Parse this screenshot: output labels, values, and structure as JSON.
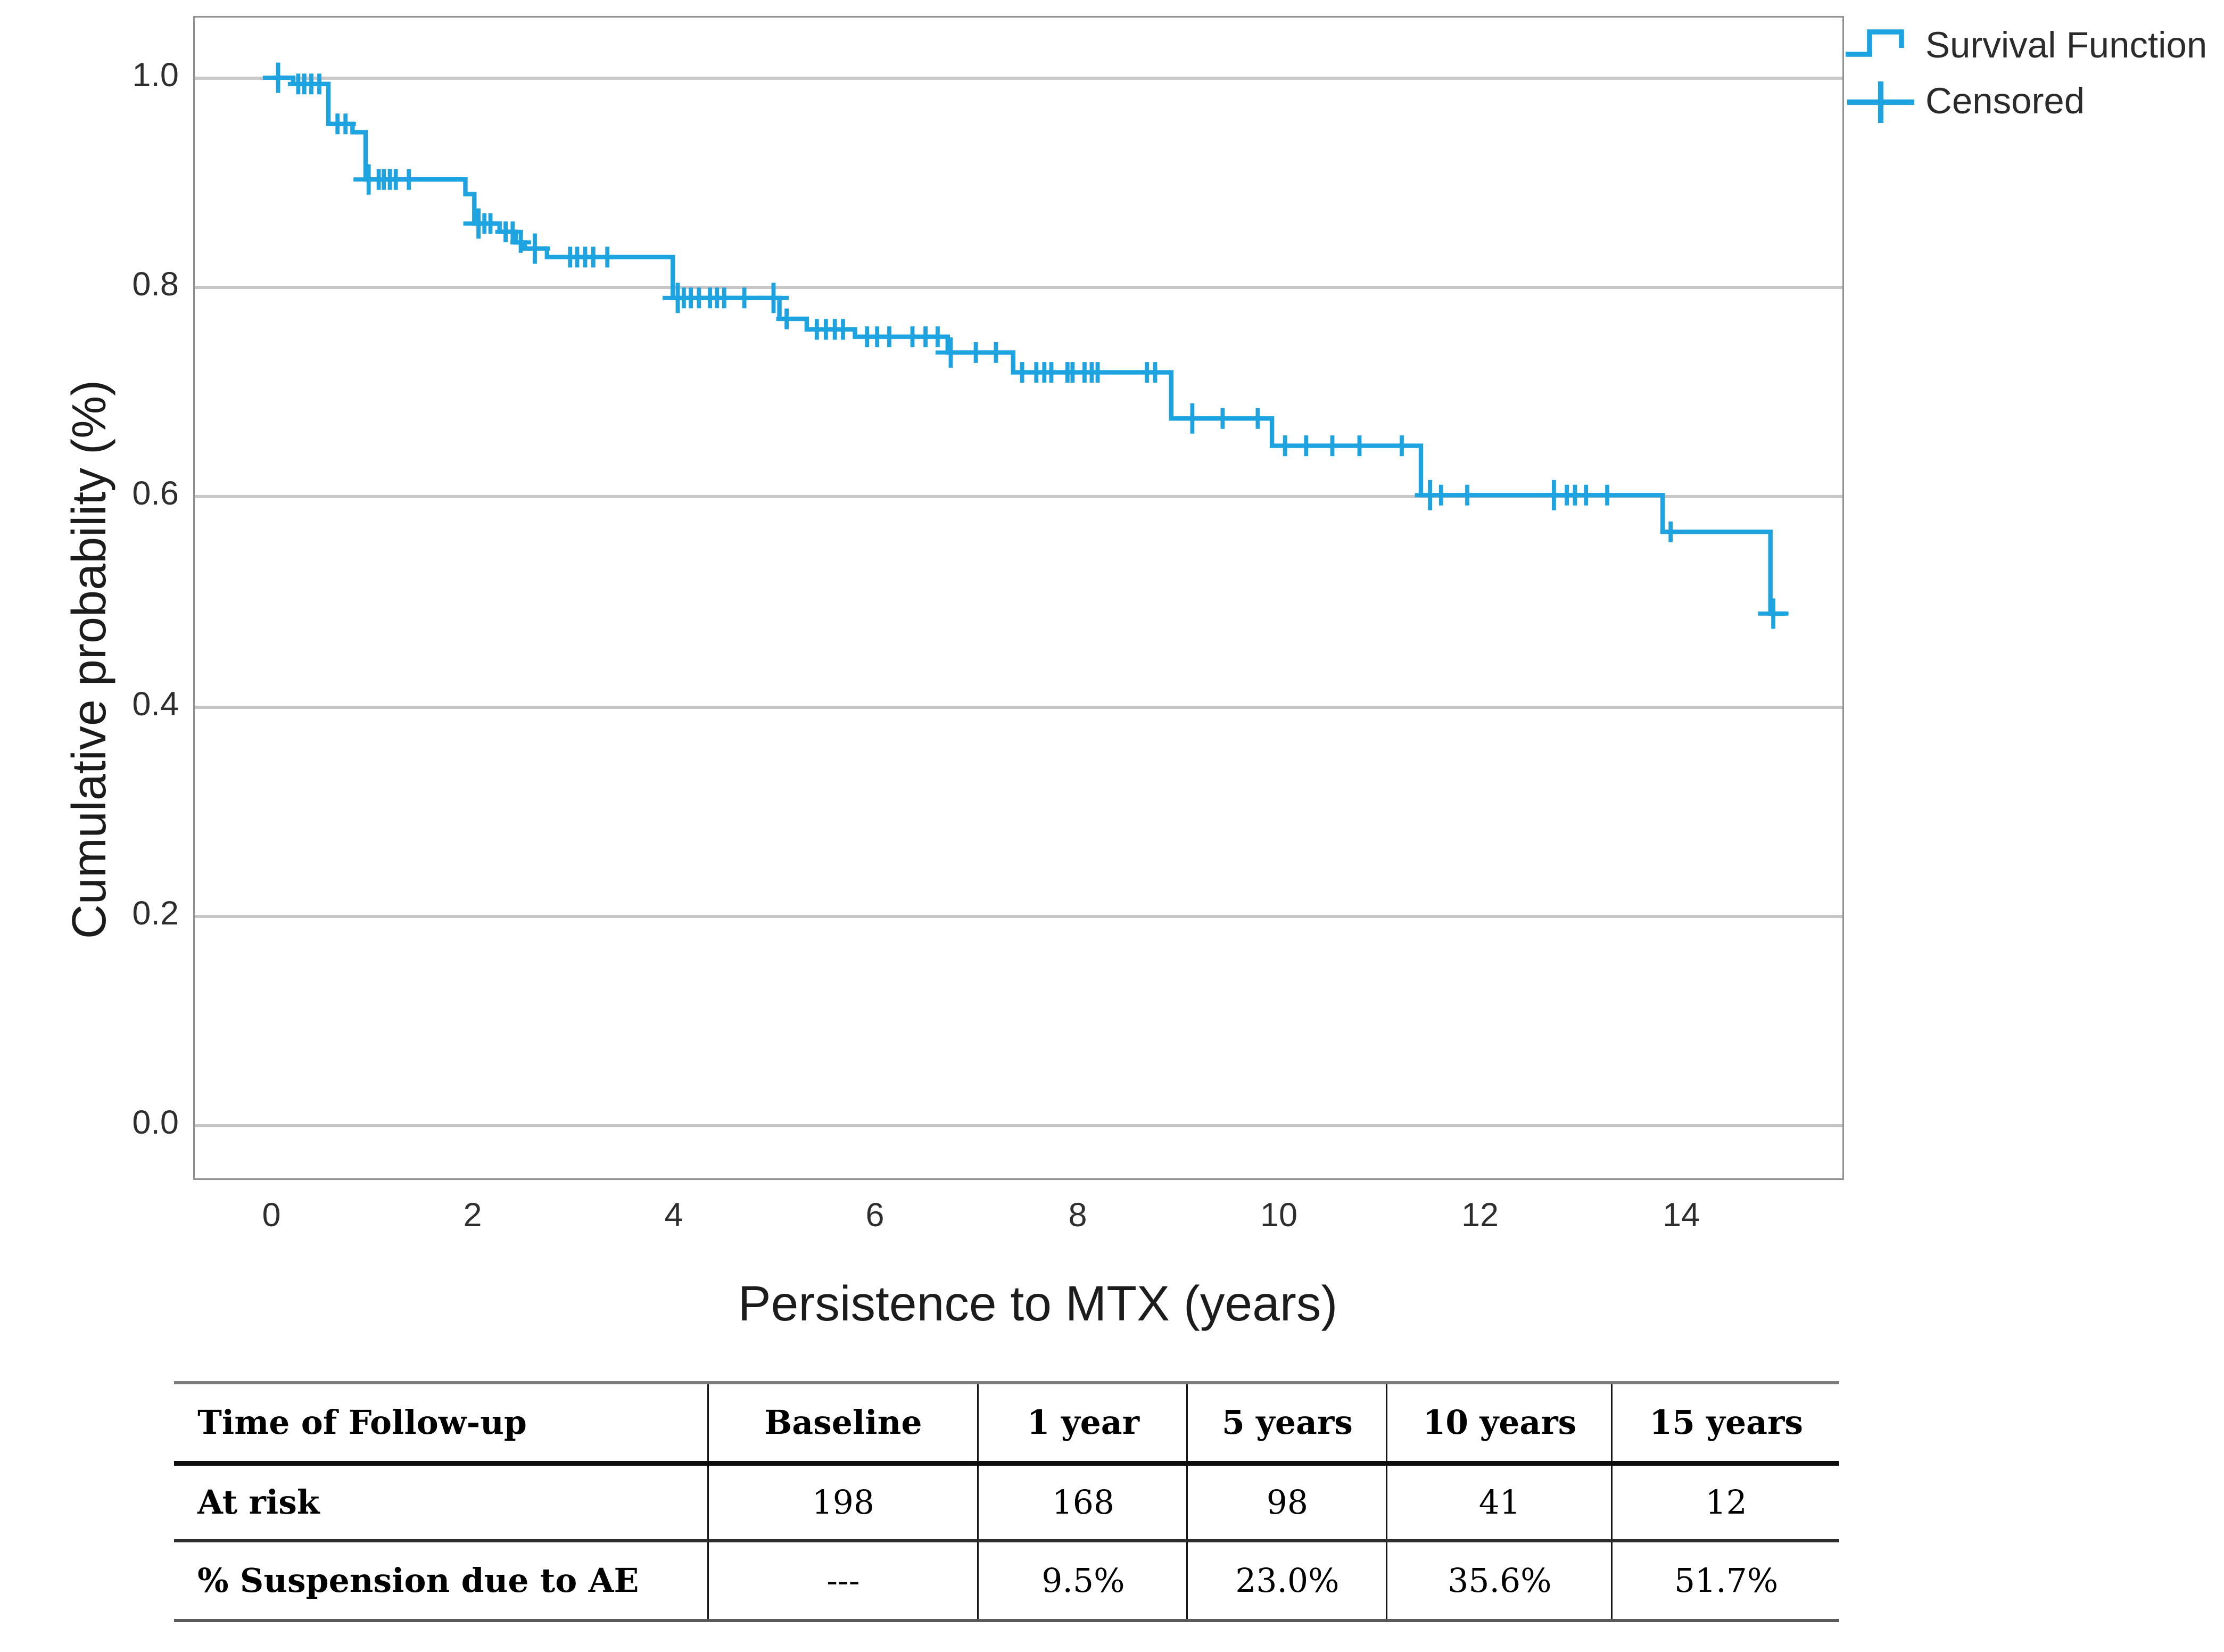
{
  "chart": {
    "y_axis": {
      "title": "Cumulative probability (%)",
      "tick_labels": [
        "1.0",
        "0.8",
        "0.6",
        "0.4",
        "0.2",
        "0.0"
      ]
    },
    "x_axis": {
      "title": "Persistence to MTX (years)",
      "tick_labels": [
        "0",
        "2",
        "4",
        "6",
        "8",
        "10",
        "12",
        "14"
      ]
    },
    "legend": {
      "survival_label": "Survival Function",
      "censored_label": "Censored"
    },
    "colors": {
      "curve_blue": "#1ea3e1",
      "gridline_gray": "#c6c6c6",
      "frame_gray": "#919191"
    }
  },
  "chart_data": {
    "type": "line",
    "subtype": "kaplan-meier-step",
    "title": "",
    "xlabel": "Persistence to MTX (years)",
    "ylabel": "Cumulative probability (%)",
    "xlim": [
      -0.78,
      15.6
    ],
    "ylim": [
      -0.07,
      1.06
    ],
    "x_ticks": [
      0,
      2,
      4,
      6,
      8,
      10,
      12,
      14
    ],
    "y_ticks": [
      0.0,
      0.2,
      0.4,
      0.6,
      0.8,
      1.0
    ],
    "grid": "horizontal",
    "legend_position": "top-right-outside",
    "series": [
      {
        "name": "Survival Function",
        "style": "step-after",
        "points": [
          [
            0.0,
            1.0
          ],
          [
            0.2,
            0.994
          ],
          [
            0.55,
            0.956
          ],
          [
            0.79,
            0.948
          ],
          [
            0.92,
            0.903
          ],
          [
            1.91,
            0.889
          ],
          [
            2.0,
            0.861
          ],
          [
            2.25,
            0.853
          ],
          [
            2.41,
            0.843
          ],
          [
            2.5,
            0.837
          ],
          [
            2.72,
            0.829
          ],
          [
            3.97,
            0.79
          ],
          [
            5.03,
            0.77
          ],
          [
            5.3,
            0.76
          ],
          [
            5.78,
            0.753
          ],
          [
            6.7,
            0.738
          ],
          [
            7.35,
            0.719
          ],
          [
            8.92,
            0.675
          ],
          [
            9.92,
            0.649
          ],
          [
            11.4,
            0.602
          ],
          [
            13.8,
            0.567
          ],
          [
            14.87,
            0.489
          ],
          [
            15.02,
            0.489
          ]
        ]
      },
      {
        "name": "Censored",
        "style": "plus-markers",
        "points": [
          [
            0.05,
            1.0,
            1
          ],
          [
            0.25,
            0.994
          ],
          [
            0.31,
            0.994
          ],
          [
            0.38,
            0.994
          ],
          [
            0.46,
            0.994
          ],
          [
            0.64,
            0.956
          ],
          [
            0.72,
            0.956
          ],
          [
            0.95,
            0.903,
            1
          ],
          [
            1.05,
            0.903
          ],
          [
            1.1,
            0.903
          ],
          [
            1.16,
            0.903
          ],
          [
            1.22,
            0.903
          ],
          [
            1.35,
            0.903
          ],
          [
            2.04,
            0.861,
            1
          ],
          [
            2.1,
            0.861
          ],
          [
            2.16,
            0.861
          ],
          [
            2.31,
            0.853
          ],
          [
            2.38,
            0.853
          ],
          [
            2.46,
            0.843
          ],
          [
            2.6,
            0.837,
            1
          ],
          [
            2.95,
            0.829
          ],
          [
            3.02,
            0.829
          ],
          [
            3.1,
            0.829
          ],
          [
            3.18,
            0.829
          ],
          [
            3.32,
            0.829
          ],
          [
            4.02,
            0.79,
            1
          ],
          [
            4.08,
            0.79
          ],
          [
            4.15,
            0.79
          ],
          [
            4.23,
            0.79
          ],
          [
            4.34,
            0.79
          ],
          [
            4.41,
            0.79
          ],
          [
            4.48,
            0.79
          ],
          [
            4.68,
            0.79
          ],
          [
            4.97,
            0.79,
            1
          ],
          [
            5.1,
            0.77
          ],
          [
            5.4,
            0.76
          ],
          [
            5.49,
            0.76
          ],
          [
            5.58,
            0.76
          ],
          [
            5.66,
            0.76
          ],
          [
            5.9,
            0.753
          ],
          [
            6.0,
            0.753
          ],
          [
            6.12,
            0.753
          ],
          [
            6.35,
            0.753
          ],
          [
            6.48,
            0.753
          ],
          [
            6.6,
            0.753
          ],
          [
            6.73,
            0.738,
            1
          ],
          [
            6.98,
            0.738
          ],
          [
            7.18,
            0.738
          ],
          [
            7.44,
            0.719
          ],
          [
            7.58,
            0.719
          ],
          [
            7.66,
            0.719
          ],
          [
            7.73,
            0.719
          ],
          [
            7.89,
            0.719
          ],
          [
            7.94,
            0.719
          ],
          [
            8.06,
            0.719
          ],
          [
            8.13,
            0.719
          ],
          [
            8.19,
            0.719
          ],
          [
            8.68,
            0.719
          ],
          [
            8.76,
            0.719
          ],
          [
            9.13,
            0.675,
            1
          ],
          [
            9.43,
            0.675
          ],
          [
            9.78,
            0.675
          ],
          [
            10.05,
            0.649
          ],
          [
            10.26,
            0.649
          ],
          [
            10.52,
            0.649
          ],
          [
            10.79,
            0.649
          ],
          [
            11.21,
            0.649
          ],
          [
            11.49,
            0.602,
            1
          ],
          [
            11.6,
            0.602
          ],
          [
            11.86,
            0.602
          ],
          [
            12.72,
            0.602,
            1
          ],
          [
            12.85,
            0.602
          ],
          [
            12.93,
            0.602
          ],
          [
            13.04,
            0.602
          ],
          [
            13.25,
            0.602
          ],
          [
            13.88,
            0.567
          ],
          [
            14.9,
            0.489,
            1
          ]
        ]
      }
    ]
  },
  "table": {
    "columns": [
      "Time of Follow-up",
      "Baseline",
      "1 year",
      "5 years",
      "10 years",
      "15 years"
    ],
    "rows": [
      {
        "label": "At risk",
        "values": [
          "198",
          "168",
          "98",
          "41",
          "12"
        ]
      },
      {
        "label": "% Suspension due to AE",
        "values": [
          "---",
          "9.5%",
          "23.0%",
          "35.6%",
          "51.7%"
        ]
      }
    ]
  }
}
